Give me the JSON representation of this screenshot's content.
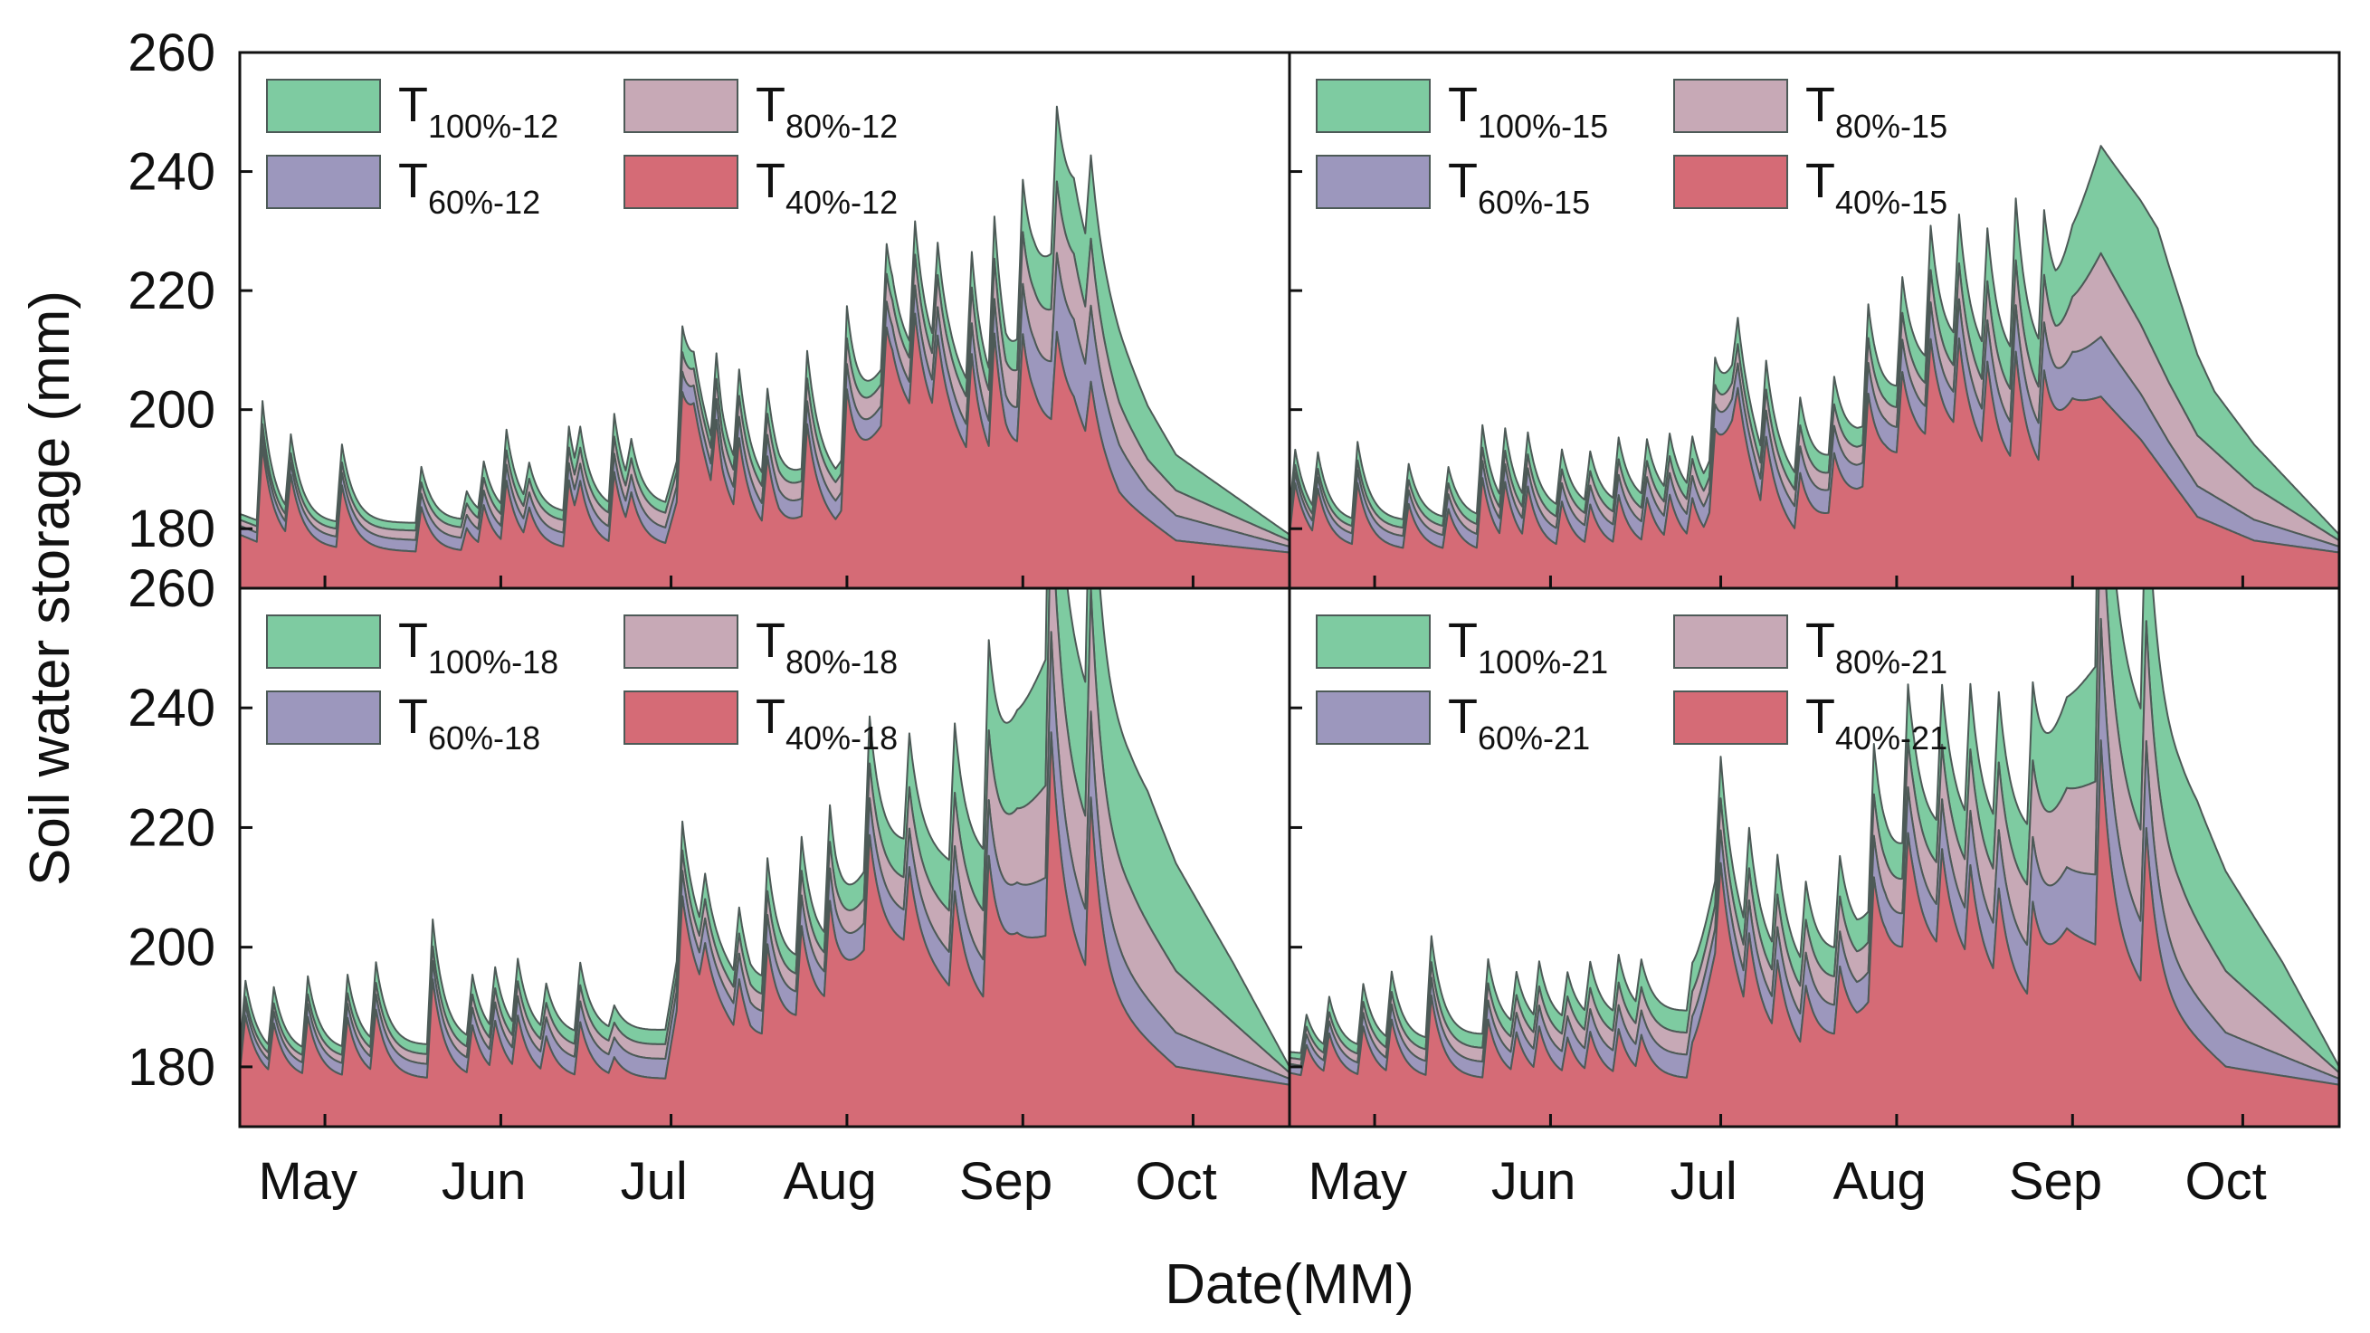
{
  "chart_data": {
    "type": "area",
    "ylabel": "Soil water storage (mm)",
    "xlabel": "Date(MM)",
    "ylim": [
      170,
      260
    ],
    "y_ticks": [
      "260",
      "240",
      "220",
      "200",
      "180"
    ],
    "x_ticks": [
      "May",
      "Jun",
      "Jul",
      "Aug",
      "Sep",
      "Oct"
    ],
    "day_range": [
      115,
      300
    ],
    "month_positions": [
      130,
      161,
      191,
      222,
      253,
      283
    ],
    "series_colors": {
      "T100": "#7ecba1",
      "T80": "#c7a9b6",
      "T60": "#9c97bd",
      "T40": "#d56b76"
    },
    "panels": [
      {
        "id": "p12",
        "legend": [
          {
            "key": "T100",
            "main": "T",
            "sub": "100%-12"
          },
          {
            "key": "T80",
            "main": "T",
            "sub": "80%-12"
          },
          {
            "key": "T60",
            "main": "T",
            "sub": "60%-12"
          },
          {
            "key": "T40",
            "main": "T",
            "sub": "40%-12"
          }
        ],
        "base": [
          [
            115,
            179
          ],
          [
            120,
            177
          ],
          [
            150,
            176
          ],
          [
            190,
            177
          ],
          [
            195,
            195
          ],
          [
            200,
            181
          ],
          [
            210,
            178
          ],
          [
            215,
            182
          ],
          [
            220,
            180
          ],
          [
            225,
            190
          ],
          [
            230,
            200
          ],
          [
            240,
            195
          ],
          [
            245,
            190
          ],
          [
            250,
            188
          ],
          [
            255,
            195
          ],
          [
            262,
            198
          ],
          [
            270,
            185
          ],
          [
            280,
            178
          ],
          [
            300,
            176
          ]
        ],
        "peaks": [
          [
            119,
            22
          ],
          [
            124,
            14
          ],
          [
            133,
            14
          ],
          [
            147,
            10
          ],
          [
            155,
            5
          ],
          [
            158,
            9
          ],
          [
            162,
            14
          ],
          [
            166,
            7
          ],
          [
            173,
            15
          ],
          [
            175,
            9
          ],
          [
            181,
            16
          ],
          [
            184,
            8
          ],
          [
            193,
            20
          ],
          [
            199,
            18
          ],
          [
            203,
            17
          ],
          [
            208,
            16
          ],
          [
            215,
            20
          ],
          [
            222,
            25
          ],
          [
            229,
            20
          ],
          [
            234,
            22
          ],
          [
            238,
            18
          ],
          [
            244,
            23
          ],
          [
            248,
            28
          ],
          [
            253,
            24
          ],
          [
            259,
            20
          ],
          [
            265,
            14
          ]
        ],
        "dT60": [
          [
            115,
            1.5
          ],
          [
            220,
            3
          ],
          [
            250,
            4
          ],
          [
            262,
            12
          ],
          [
            275,
            5
          ],
          [
            300,
            1
          ]
        ],
        "dT80": [
          [
            115,
            1
          ],
          [
            220,
            3
          ],
          [
            250,
            5
          ],
          [
            262,
            10
          ],
          [
            275,
            5
          ],
          [
            300,
            1
          ]
        ],
        "dT100": [
          [
            115,
            1
          ],
          [
            220,
            2
          ],
          [
            250,
            3
          ],
          [
            262,
            12
          ],
          [
            270,
            12
          ],
          [
            280,
            6
          ],
          [
            300,
            1
          ]
        ]
      },
      {
        "id": "p15",
        "legend": [
          {
            "key": "T100",
            "main": "T",
            "sub": "100%-15"
          },
          {
            "key": "T80",
            "main": "T",
            "sub": "80%-15"
          },
          {
            "key": "T60",
            "main": "T",
            "sub": "60%-15"
          },
          {
            "key": "T40",
            "main": "T",
            "sub": "40%-15"
          }
        ],
        "base": [
          [
            115,
            179
          ],
          [
            120,
            177
          ],
          [
            150,
            176
          ],
          [
            188,
            177
          ],
          [
            193,
            195
          ],
          [
            198,
            183
          ],
          [
            205,
            178
          ],
          [
            215,
            185
          ],
          [
            220,
            190
          ],
          [
            225,
            193
          ],
          [
            232,
            195
          ],
          [
            240,
            190
          ],
          [
            248,
            188
          ],
          [
            253,
            200
          ],
          [
            258,
            202
          ],
          [
            265,
            195
          ],
          [
            275,
            182
          ],
          [
            285,
            178
          ],
          [
            300,
            176
          ]
        ],
        "peaks": [
          [
            116,
            12
          ],
          [
            120,
            11
          ],
          [
            127,
            14
          ],
          [
            136,
            10
          ],
          [
            143,
            9
          ],
          [
            149,
            16
          ],
          [
            153,
            13
          ],
          [
            157,
            12
          ],
          [
            163,
            10
          ],
          [
            168,
            9
          ],
          [
            173,
            11
          ],
          [
            178,
            10
          ],
          [
            182,
            10
          ],
          [
            186,
            9
          ],
          [
            190,
            15
          ],
          [
            194,
            12
          ],
          [
            199,
            16
          ],
          [
            205,
            14
          ],
          [
            211,
            13
          ],
          [
            217,
            20
          ],
          [
            223,
            18
          ],
          [
            228,
            22
          ],
          [
            233,
            21
          ],
          [
            238,
            20
          ],
          [
            243,
            25
          ],
          [
            248,
            22
          ]
        ],
        "dT60": [
          [
            115,
            1.5
          ],
          [
            220,
            4
          ],
          [
            250,
            6
          ],
          [
            258,
            10
          ],
          [
            270,
            6
          ],
          [
            300,
            1
          ]
        ],
        "dT80": [
          [
            115,
            1
          ],
          [
            220,
            3
          ],
          [
            250,
            6
          ],
          [
            258,
            14
          ],
          [
            270,
            10
          ],
          [
            300,
            1
          ]
        ],
        "dT100": [
          [
            115,
            1
          ],
          [
            220,
            3
          ],
          [
            250,
            8
          ],
          [
            258,
            18
          ],
          [
            268,
            22
          ],
          [
            278,
            10
          ],
          [
            300,
            1
          ]
        ]
      },
      {
        "id": "p18",
        "legend": [
          {
            "key": "T100",
            "main": "T",
            "sub": "100%-18"
          },
          {
            "key": "T80",
            "main": "T",
            "sub": "80%-18"
          },
          {
            "key": "T60",
            "main": "T",
            "sub": "60%-18"
          },
          {
            "key": "T40",
            "main": "T",
            "sub": "40%-18"
          }
        ],
        "base": [
          [
            115,
            179
          ],
          [
            120,
            178
          ],
          [
            150,
            178
          ],
          [
            190,
            178
          ],
          [
            193,
            195
          ],
          [
            198,
            190
          ],
          [
            205,
            183
          ],
          [
            215,
            188
          ],
          [
            220,
            190
          ],
          [
            226,
            200
          ],
          [
            232,
            200
          ],
          [
            240,
            193
          ],
          [
            246,
            190
          ],
          [
            252,
            200
          ],
          [
            258,
            202
          ],
          [
            268,
            190
          ],
          [
            280,
            180
          ],
          [
            300,
            177
          ]
        ],
        "peaks": [
          [
            116,
            13
          ],
          [
            121,
            11
          ],
          [
            127,
            13
          ],
          [
            134,
            13
          ],
          [
            139,
            14
          ],
          [
            149,
            22
          ],
          [
            156,
            11
          ],
          [
            160,
            11
          ],
          [
            164,
            12
          ],
          [
            169,
            8
          ],
          [
            175,
            12
          ],
          [
            181,
            4
          ],
          [
            193,
            18
          ],
          [
            197,
            10
          ],
          [
            203,
            12
          ],
          [
            208,
            20
          ],
          [
            214,
            20
          ],
          [
            219,
            22
          ],
          [
            226,
            24
          ],
          [
            233,
            18
          ],
          [
            241,
            22
          ],
          [
            247,
            30
          ],
          [
            258,
            45
          ],
          [
            265,
            40
          ]
        ],
        "dT60": [
          [
            115,
            1.5
          ],
          [
            220,
            4
          ],
          [
            246,
            6
          ],
          [
            258,
            10
          ],
          [
            270,
            8
          ],
          [
            300,
            1
          ]
        ],
        "dT80": [
          [
            115,
            1
          ],
          [
            220,
            3
          ],
          [
            246,
            8
          ],
          [
            258,
            16
          ],
          [
            272,
            14
          ],
          [
            300,
            1
          ]
        ],
        "dT100": [
          [
            115,
            1
          ],
          [
            220,
            3
          ],
          [
            246,
            10
          ],
          [
            258,
            22
          ],
          [
            275,
            22
          ],
          [
            290,
            10
          ],
          [
            300,
            1
          ]
        ]
      },
      {
        "id": "p21",
        "legend": [
          {
            "key": "T100",
            "main": "T",
            "sub": "100%-21"
          },
          {
            "key": "T80",
            "main": "T",
            "sub": "80%-21"
          },
          {
            "key": "T60",
            "main": "T",
            "sub": "60%-21"
          },
          {
            "key": "T40",
            "main": "T",
            "sub": "40%-21"
          }
        ],
        "base": [
          [
            115,
            179
          ],
          [
            120,
            178
          ],
          [
            150,
            178
          ],
          [
            186,
            178
          ],
          [
            190,
            198
          ],
          [
            196,
            187
          ],
          [
            205,
            182
          ],
          [
            215,
            186
          ],
          [
            220,
            195
          ],
          [
            225,
            200
          ],
          [
            232,
            198
          ],
          [
            240,
            193
          ],
          [
            246,
            190
          ],
          [
            252,
            202
          ],
          [
            258,
            200
          ],
          [
            266,
            192
          ],
          [
            280,
            180
          ],
          [
            300,
            177
          ]
        ],
        "peaks": [
          [
            118,
            7
          ],
          [
            122,
            9
          ],
          [
            128,
            11
          ],
          [
            133,
            12
          ],
          [
            140,
            18
          ],
          [
            150,
            13
          ],
          [
            155,
            9
          ],
          [
            159,
            10
          ],
          [
            164,
            8
          ],
          [
            168,
            9
          ],
          [
            173,
            10
          ],
          [
            177,
            8
          ],
          [
            186,
            8
          ],
          [
            191,
            23
          ],
          [
            196,
            18
          ],
          [
            201,
            16
          ],
          [
            206,
            13
          ],
          [
            212,
            15
          ],
          [
            218,
            26
          ],
          [
            224,
            25
          ],
          [
            230,
            22
          ],
          [
            235,
            21
          ],
          [
            240,
            20
          ],
          [
            246,
            22
          ],
          [
            258,
            46
          ],
          [
            266,
            36
          ]
        ],
        "dT60": [
          [
            115,
            1.5
          ],
          [
            220,
            5
          ],
          [
            246,
            8
          ],
          [
            258,
            12
          ],
          [
            270,
            8
          ],
          [
            300,
            1
          ]
        ],
        "dT80": [
          [
            115,
            1
          ],
          [
            220,
            5
          ],
          [
            246,
            10
          ],
          [
            258,
            16
          ],
          [
            272,
            14
          ],
          [
            300,
            1
          ]
        ],
        "dT100": [
          [
            115,
            1
          ],
          [
            220,
            5
          ],
          [
            246,
            10
          ],
          [
            258,
            20
          ],
          [
            275,
            20
          ],
          [
            290,
            10
          ],
          [
            300,
            1
          ]
        ]
      }
    ]
  }
}
